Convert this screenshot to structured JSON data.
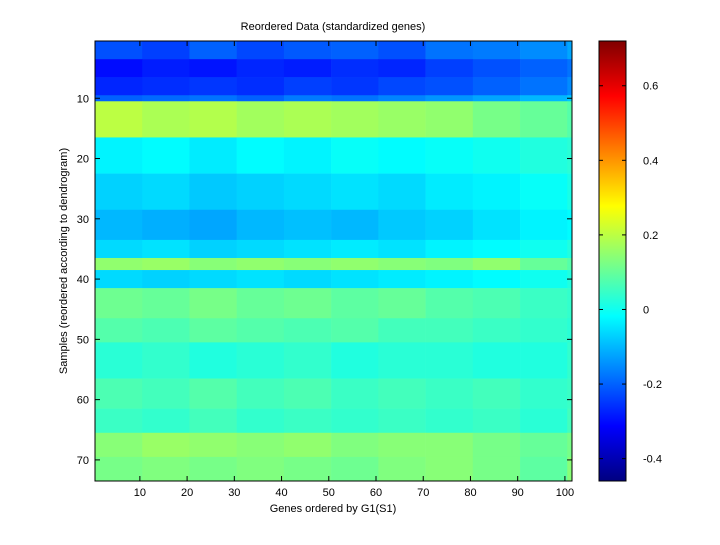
{
  "chart_data": {
    "type": "heatmap",
    "title": "Reordered Data (standardized genes)",
    "xlabel": "Genes ordered by G1(S1)",
    "ylabel": "Samples (reordered according to dendrogram)",
    "colormap": "jet",
    "x_edges": [
      0.5,
      10.5,
      20.5,
      30.5,
      40.5,
      50.5,
      60.5,
      70.5,
      80.5,
      90.5,
      100.5,
      101.5
    ],
    "y_edges": [
      0.5,
      3.5,
      6.5,
      9.5,
      10.5,
      16.5,
      22.5,
      28.5,
      33.5,
      36.5,
      38.5,
      41.5,
      46.5,
      50.5,
      56.5,
      61.5,
      65.5,
      69.5,
      73.5
    ],
    "z": [
      [
        -0.22,
        -0.24,
        -0.2,
        -0.23,
        -0.21,
        -0.2,
        -0.22,
        -0.18,
        -0.17,
        -0.15,
        -0.12
      ],
      [
        -0.3,
        -0.28,
        -0.29,
        -0.27,
        -0.28,
        -0.26,
        -0.27,
        -0.24,
        -0.22,
        -0.2,
        -0.18
      ],
      [
        -0.27,
        -0.26,
        -0.25,
        -0.26,
        -0.24,
        -0.25,
        -0.23,
        -0.22,
        -0.2,
        -0.18,
        -0.15
      ],
      [
        -0.2,
        -0.19,
        -0.18,
        -0.2,
        -0.17,
        -0.18,
        -0.16,
        -0.14,
        -0.12,
        -0.1,
        -0.08
      ],
      [
        0.2,
        0.18,
        0.19,
        0.17,
        0.18,
        0.17,
        0.16,
        0.15,
        0.12,
        0.1,
        0.08
      ],
      [
        -0.03,
        -0.02,
        -0.04,
        -0.02,
        -0.03,
        -0.01,
        -0.02,
        -0.01,
        0,
        0.02,
        0.03
      ],
      [
        -0.07,
        -0.06,
        -0.08,
        -0.07,
        -0.06,
        -0.05,
        -0.06,
        -0.04,
        -0.03,
        -0.01,
        0.01
      ],
      [
        -0.1,
        -0.11,
        -0.12,
        -0.1,
        -0.09,
        -0.1,
        -0.08,
        -0.07,
        -0.05,
        -0.03,
        -0.02
      ],
      [
        -0.06,
        -0.05,
        -0.07,
        -0.06,
        -0.05,
        -0.04,
        -0.05,
        -0.03,
        -0.02,
        0,
        0.02
      ],
      [
        0.15,
        0.16,
        0.14,
        0.15,
        0.14,
        0.15,
        0.14,
        0.13,
        0.15,
        0.1,
        0.08
      ],
      [
        -0.06,
        -0.07,
        -0.06,
        -0.05,
        -0.06,
        -0.05,
        -0.04,
        -0.03,
        -0.02,
        0,
        0.02
      ],
      [
        0.11,
        0.1,
        0.12,
        0.1,
        0.11,
        0.09,
        0.1,
        0.08,
        0.07,
        0.05,
        0.04
      ],
      [
        0.08,
        0.07,
        0.09,
        0.08,
        0.07,
        0.08,
        0.06,
        0.06,
        0.05,
        0.04,
        0.03
      ],
      [
        0.03,
        0.04,
        0.02,
        0.03,
        0.04,
        0.02,
        0.03,
        0.03,
        0.02,
        0.02,
        0.04
      ],
      [
        0.07,
        0.06,
        0.08,
        0.06,
        0.07,
        0.05,
        0.06,
        0.05,
        0.06,
        0.04,
        0.05
      ],
      [
        0.05,
        0.04,
        0.06,
        0.04,
        0.05,
        0.04,
        0.05,
        0.04,
        0.05,
        0.03,
        0.06
      ],
      [
        0.14,
        0.16,
        0.15,
        0.14,
        0.15,
        0.13,
        0.14,
        0.14,
        0.12,
        0.1,
        0.12
      ],
      [
        0.12,
        0.13,
        0.12,
        0.13,
        0.12,
        0.11,
        0.13,
        0.14,
        0.12,
        0.09,
        0.14
      ]
    ],
    "xlim": [
      0.5,
      101.5
    ],
    "xticks": [
      10,
      20,
      30,
      40,
      50,
      60,
      70,
      80,
      90,
      100
    ],
    "ylim": [
      0.5,
      73.5
    ],
    "yticks": [
      10,
      20,
      30,
      40,
      50,
      60,
      70
    ],
    "y_reversed": true,
    "clim": [
      -0.46,
      0.72
    ],
    "colorbar_ticks": [
      -0.4,
      -0.2,
      0,
      0.2,
      0.4,
      0.6
    ]
  }
}
